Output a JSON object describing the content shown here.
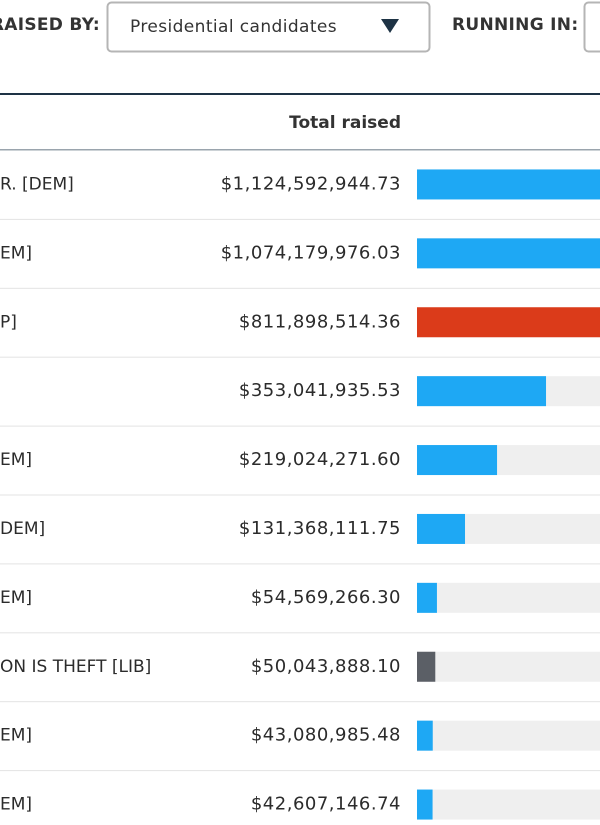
{
  "filters": {
    "raised_by_label": "RAISED BY:",
    "raised_by_value": "Presidential candidates",
    "running_in_label": "RUNNING IN:"
  },
  "table": {
    "column_header": "Total raised",
    "rows": [
      {
        "name": "R. [DEM]",
        "amount": 1124592944.73,
        "amount_label": "$1,124,592,944.73",
        "color": "#1ea8f4"
      },
      {
        "name": "EM]",
        "amount": 1074179976.03,
        "amount_label": "$1,074,179,976.03",
        "color": "#1ea8f4"
      },
      {
        "name": "P]",
        "amount": 811898514.36,
        "amount_label": "$811,898,514.36",
        "color": "#db3b1a"
      },
      {
        "amount": 353041935.53,
        "amount_label": "$353,041,935.53",
        "color": "#1ea8f4"
      },
      {
        "name": "EM]",
        "amount": 219024271.6,
        "amount_label": "$219,024,271.60",
        "color": "#1ea8f4"
      },
      {
        "name": "DEM]",
        "amount": 131368111.75,
        "amount_label": "$131,368,111.75",
        "color": "#1ea8f4"
      },
      {
        "name": "EM]",
        "amount": 54569266.3,
        "amount_label": "$54,569,266.30",
        "color": "#1ea8f4"
      },
      {
        "name": "ON IS THEFT [LIB]",
        "amount": 50043888.1,
        "amount_label": "$50,043,888.10",
        "color": "#5b5f66"
      },
      {
        "name": "EM]",
        "amount": 43080985.48,
        "amount_label": "$43,080,985.48",
        "color": "#1ea8f4"
      },
      {
        "name": "EM]",
        "amount": 42607146.74,
        "amount_label": "$42,607,146.74",
        "color": "#1ea8f4"
      }
    ]
  }
}
